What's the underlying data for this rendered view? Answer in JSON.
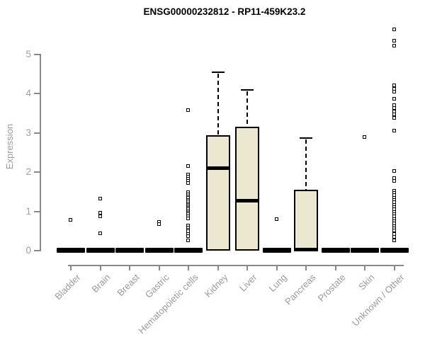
{
  "title": "ENSG00000232812 - RP11-459K23.2",
  "chart_data": {
    "type": "boxplot",
    "title": "ENSG00000232812 - RP11-459K23.2",
    "xlabel": "",
    "ylabel": "Expression",
    "ylim": [
      0,
      5.8
    ],
    "yticks": [
      0,
      1,
      2,
      3,
      4,
      5
    ],
    "grid": false,
    "legend": false,
    "categories": [
      "Bladder",
      "Brain",
      "Breast",
      "Gastric",
      "Hematopoietic cells",
      "Kidney",
      "Liver",
      "Lung",
      "Pancreas",
      "Prostate",
      "Skin",
      "Unknown / Other"
    ],
    "boxes": [
      {
        "category": "Bladder",
        "whisker_low": 0,
        "q1": 0,
        "median": 0,
        "q3": 0,
        "whisker_high": 0,
        "outliers": [
          0.78
        ]
      },
      {
        "category": "Brain",
        "whisker_low": 0,
        "q1": 0,
        "median": 0,
        "q3": 0,
        "whisker_high": 0,
        "outliers": [
          1.32,
          0.95,
          0.86,
          0.44
        ]
      },
      {
        "category": "Breast",
        "whisker_low": 0,
        "q1": 0,
        "median": 0,
        "q3": 0,
        "whisker_high": 0,
        "outliers": []
      },
      {
        "category": "Gastric",
        "whisker_low": 0,
        "q1": 0,
        "median": 0,
        "q3": 0,
        "whisker_high": 0,
        "outliers": [
          0.72,
          0.67
        ]
      },
      {
        "category": "Hematopoietic cells",
        "whisker_low": 0,
        "q1": 0,
        "median": 0,
        "q3": 0,
        "whisker_high": 0,
        "outliers": [
          3.57,
          2.15,
          1.94,
          1.88,
          1.82,
          1.76,
          1.71,
          1.48,
          1.43,
          1.38,
          1.33,
          1.28,
          1.24,
          1.2,
          1.16,
          1.12,
          1.08,
          1.04,
          1.0,
          0.96,
          0.92,
          0.87,
          0.82,
          0.63,
          0.58,
          0.53,
          0.48,
          0.42,
          0.36,
          0.25
        ]
      },
      {
        "category": "Kidney",
        "whisker_low": 0,
        "q1": 0,
        "median": 2.1,
        "q3": 2.95,
        "whisker_high": 4.55,
        "outliers": []
      },
      {
        "category": "Liver",
        "whisker_low": 0,
        "q1": 0,
        "median": 1.28,
        "q3": 3.15,
        "whisker_high": 4.1,
        "outliers": []
      },
      {
        "category": "Lung",
        "whisker_low": 0,
        "q1": 0,
        "median": 0,
        "q3": 0,
        "whisker_high": 0,
        "outliers": [
          0.79
        ]
      },
      {
        "category": "Pancreas",
        "whisker_low": 0,
        "q1": 0,
        "median": 0.02,
        "q3": 1.55,
        "whisker_high": 2.87,
        "outliers": []
      },
      {
        "category": "Prostate",
        "whisker_low": 0,
        "q1": 0,
        "median": 0,
        "q3": 0,
        "whisker_high": 0,
        "outliers": []
      },
      {
        "category": "Skin",
        "whisker_low": 0,
        "q1": 0,
        "median": 0,
        "q3": 0,
        "whisker_high": 0,
        "outliers": [
          2.88
        ]
      },
      {
        "category": "Unknown / Other",
        "whisker_low": 0,
        "q1": 0,
        "median": 0,
        "q3": 0,
        "whisker_high": 0,
        "outliers": [
          5.64,
          5.34,
          5.22,
          4.2,
          4.12,
          4.04,
          3.86,
          3.7,
          3.62,
          3.54,
          3.46,
          3.38,
          3.05,
          2.03,
          1.85,
          1.76,
          1.52,
          1.46,
          1.4,
          1.34,
          1.28,
          1.22,
          1.16,
          1.1,
          1.04,
          0.98,
          0.92,
          0.86,
          0.8,
          0.74,
          0.68,
          0.62,
          0.56,
          0.5,
          0.42,
          0.34,
          0.25
        ]
      }
    ],
    "colors": {
      "box_fill": "#ece8d0",
      "box_border": "#000000",
      "median": "#000000",
      "axis": "#888888",
      "tick_label": "#9aa0a6",
      "category_label": "#999999",
      "background": "#ffffff"
    }
  }
}
